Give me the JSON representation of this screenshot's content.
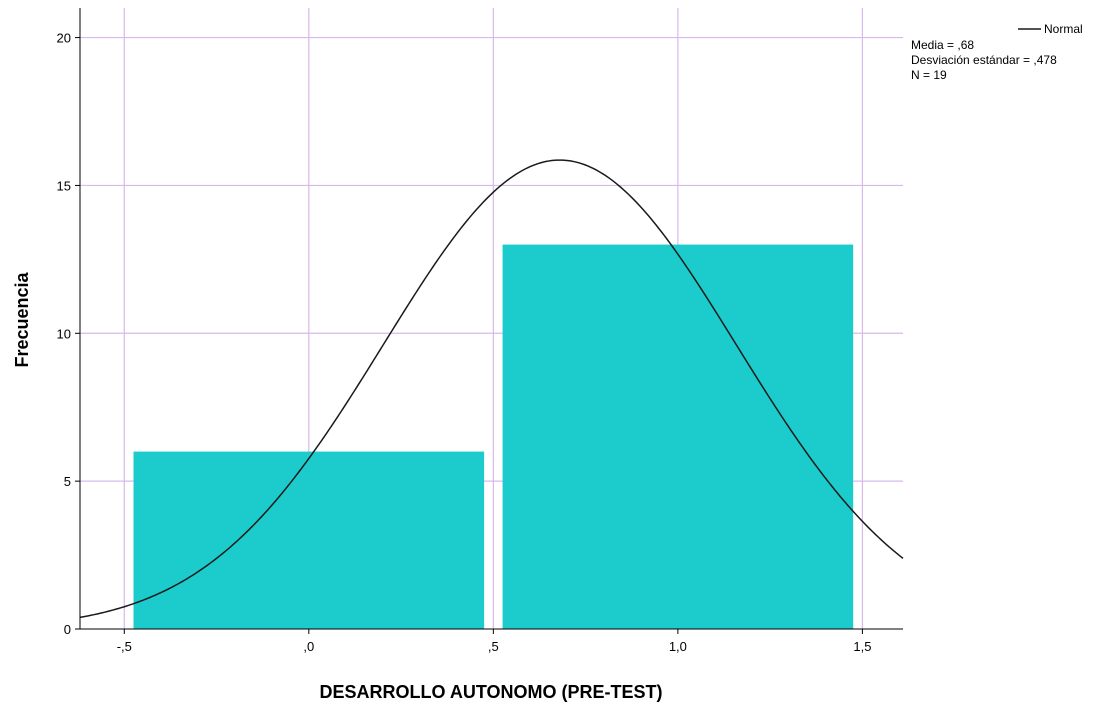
{
  "chart_data": {
    "type": "bar",
    "subtype": "histogram",
    "xlabel": "DESARROLLO AUTONOMO (PRE-TEST)",
    "ylabel": "Frecuencia",
    "xlim": [
      -0.62,
      1.61
    ],
    "ylim": [
      0,
      21
    ],
    "x_ticks": [
      -0.5,
      0.0,
      0.5,
      1.0,
      1.5
    ],
    "x_tick_labels": [
      "-,5",
      ",0",
      ",5",
      "1,0",
      "1,5"
    ],
    "y_ticks": [
      0,
      5,
      10,
      15,
      20
    ],
    "y_tick_labels": [
      "0",
      "5",
      "10",
      "15",
      "20"
    ],
    "grid": true,
    "bins": [
      {
        "start": -0.5,
        "end": 0.5,
        "value": 6
      },
      {
        "start": 0.5,
        "end": 1.5,
        "value": 13
      }
    ],
    "normal_curve": {
      "mean": 0.68,
      "sd": 0.478,
      "n": 19,
      "bin_width": 1.0
    },
    "legend": {
      "placement": "top-right",
      "curve_label": "Normal",
      "stats": [
        "Media = ,68",
        "Desviación estándar = ,478",
        "N = 19"
      ]
    },
    "colors": {
      "bar": "#1ccccc",
      "curve": "#1a1a1a",
      "grid": "#d9b8ec",
      "axis": "#000000"
    }
  }
}
